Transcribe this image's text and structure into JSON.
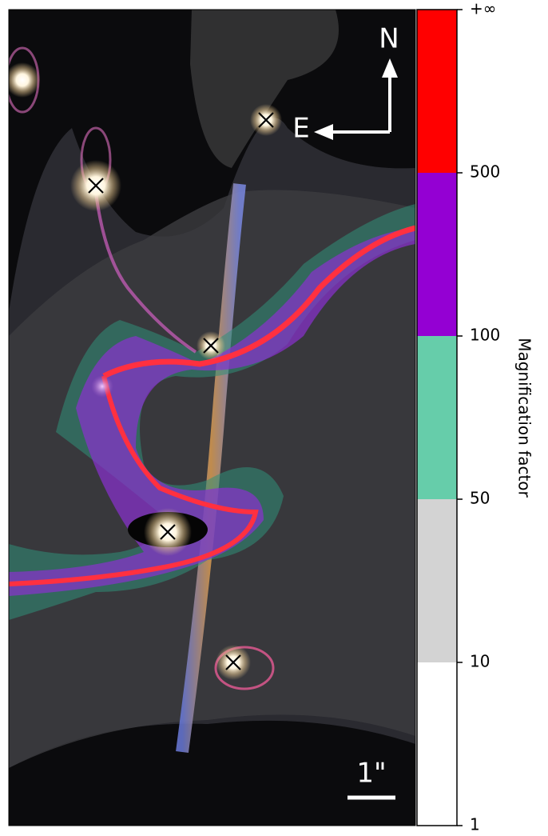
{
  "image": {
    "north": "N",
    "east": "E",
    "scale_label": "1\""
  },
  "colorbar": {
    "label": "Magnification factor",
    "ticks": [
      1,
      10,
      50,
      100,
      500,
      "+∞"
    ],
    "colors": [
      "#ffffff",
      "#d3d3d3",
      "#66cdaa",
      "#9400d3",
      "#ff0000"
    ]
  }
}
